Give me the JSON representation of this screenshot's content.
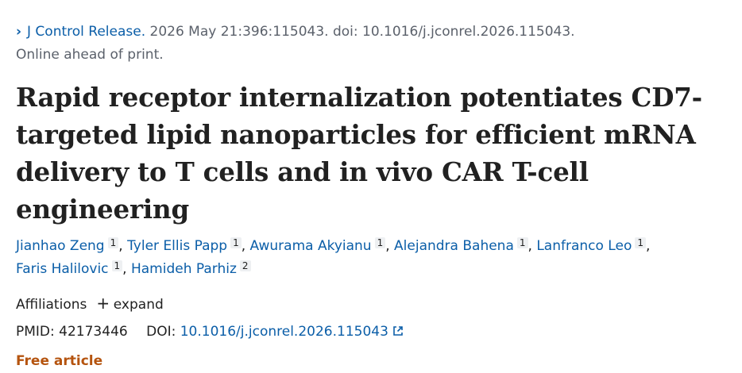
{
  "citation": {
    "journal": "J Control Release.",
    "details": " 2026 May 21:396:115043. doi: 10.1016/j.jconrel.2026.115043.",
    "status": "Online ahead of print."
  },
  "title": "Rapid receptor internalization potentiates CD7-targeted lipid nanoparticles for efficient mRNA delivery to T cells and in vivo CAR T-cell engineering",
  "authors": [
    {
      "name": "Jianhao Zeng",
      "aff": "1"
    },
    {
      "name": "Tyler Ellis Papp",
      "aff": "1"
    },
    {
      "name": "Awurama Akyianu",
      "aff": "1"
    },
    {
      "name": "Alejandra Bahena",
      "aff": "1"
    },
    {
      "name": "Lanfranco Leo",
      "aff": "1"
    },
    {
      "name": "Faris Halilovic",
      "aff": "1"
    },
    {
      "name": "Hamideh Parhiz",
      "aff": "2"
    }
  ],
  "affiliations": {
    "label": "Affiliations",
    "expand": "expand"
  },
  "ids": {
    "pmid_label": "PMID:",
    "pmid": "42173446",
    "doi_label": "DOI:",
    "doi": "10.1016/j.jconrel.2026.115043"
  },
  "free_article": "Free article",
  "colors": {
    "link": "#0b5ea8",
    "free": "#b5540f"
  }
}
